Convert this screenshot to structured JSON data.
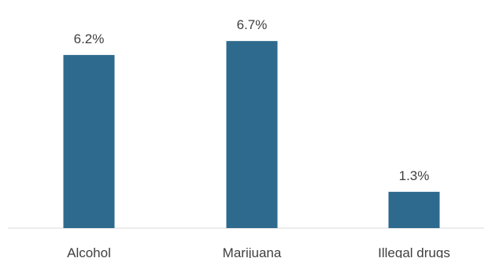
{
  "chart_data": {
    "type": "bar",
    "title": "",
    "xlabel": "",
    "ylabel": "",
    "categories": [
      "Alcohol",
      "Marijuana",
      "Illegal drugs"
    ],
    "values": [
      6.2,
      6.7,
      1.3
    ],
    "data_labels": [
      "6.2%",
      "6.7%",
      "1.3%"
    ],
    "ylim": [
      0,
      7
    ],
    "grid": false,
    "legend": "none",
    "colors": {
      "bar": "#2E6A8E",
      "axis": "#D9D9D9",
      "text": "#404040"
    }
  }
}
